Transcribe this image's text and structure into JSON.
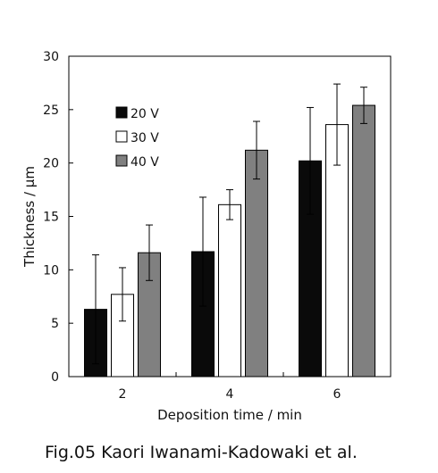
{
  "caption": "Fig.05 Kaori Iwanami-Kadowaki et al.",
  "chart_data": {
    "type": "bar",
    "xlabel": "Deposition time / min",
    "ylabel": "Thickness / μm",
    "categories": [
      "2",
      "4",
      "6"
    ],
    "ylim": [
      0,
      30
    ],
    "yticks": [
      0,
      5,
      10,
      15,
      20,
      25,
      30
    ],
    "grid": false,
    "legend_position": "top-left",
    "series": [
      {
        "name": "20 V",
        "color": "#0a0a0a",
        "values": [
          6.3,
          11.7,
          20.2
        ],
        "errors": [
          5.1,
          5.1,
          5.0
        ]
      },
      {
        "name": "30 V",
        "color": "#ffffff",
        "values": [
          7.7,
          16.1,
          23.6
        ],
        "errors": [
          2.5,
          1.4,
          3.8
        ]
      },
      {
        "name": "40 V",
        "color": "#808080",
        "values": [
          11.6,
          21.2,
          25.4
        ],
        "errors": [
          2.6,
          2.7,
          1.7
        ]
      }
    ]
  }
}
